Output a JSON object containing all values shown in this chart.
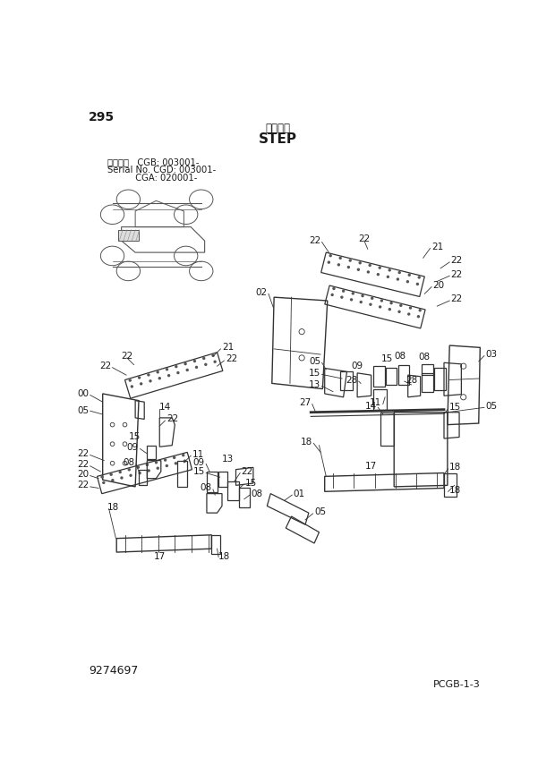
{
  "page_number": "295",
  "title_japanese": "ステップ",
  "title_english": "STEP",
  "serial_line1": "適用号機   CGB: 003001-",
  "serial_line2": "Serial No. CGD: 003001-",
  "serial_line3": "          CGA: 020001-",
  "part_number": "9274697",
  "page_ref": "PCGB-1-3",
  "bg_color": "#ffffff",
  "text_color": "#1a1a1a",
  "line_color": "#333333",
  "fig_width": 6.2,
  "fig_height": 8.75,
  "dpi": 100
}
